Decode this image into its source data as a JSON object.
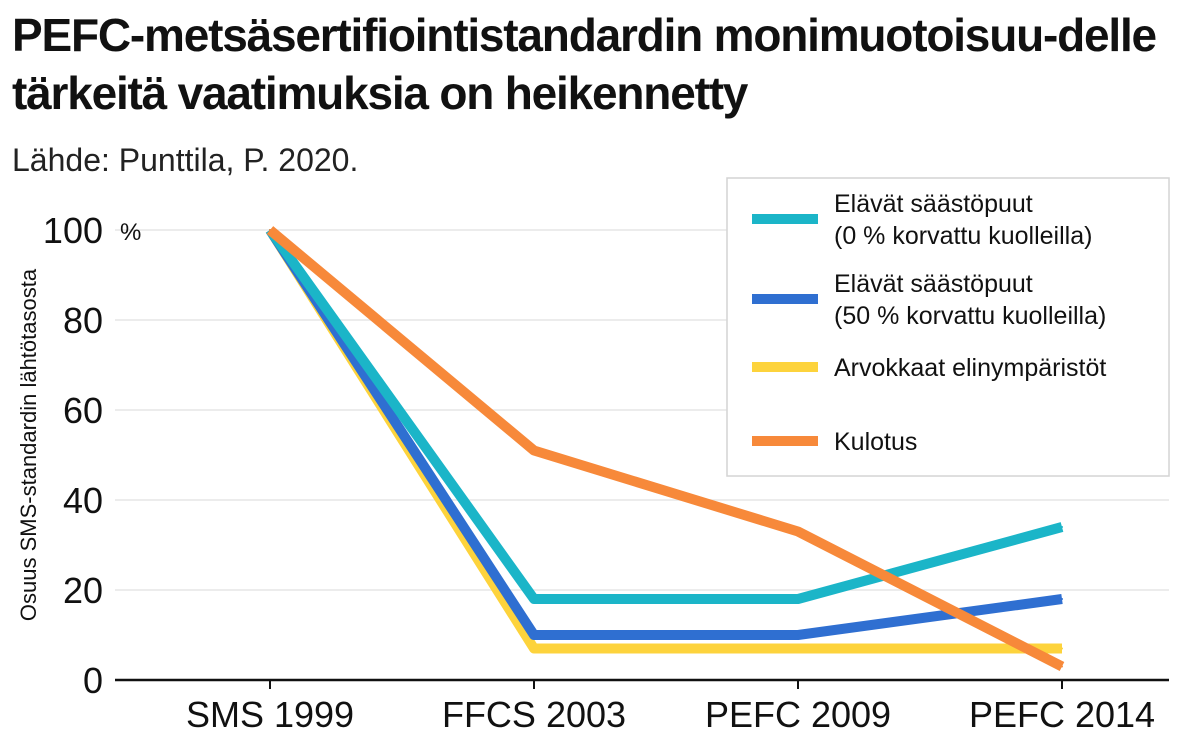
{
  "chart_data": {
    "type": "line",
    "title": "PEFC-metsäsertifiointistandardin monimuotoisuu-delle tärkeitä vaatimuksia on heikennetty",
    "subtitle": "Lähde: Punttila, P. 2020.",
    "xlabel": "",
    "ylabel": "Osuus SMS-standardin lähtötasosta",
    "yunit": "%",
    "ylim": [
      0,
      100
    ],
    "yticks": [
      0,
      20,
      40,
      60,
      80,
      100
    ],
    "grid": true,
    "legend_position": "top-right",
    "categories": [
      "SMS 1999",
      "FFCS 2003",
      "PEFC 2009",
      "PEFC 2014"
    ],
    "series": [
      {
        "name": "Elävät säästöpuut (0 % korvattu kuolleilla)",
        "legend_lines": [
          "Elävät säästöpuut",
          "(0 % korvattu kuolleilla)"
        ],
        "color": "#1bb5c8",
        "values": [
          100,
          18,
          18,
          34
        ]
      },
      {
        "name": "Elävät säästöpuut (50 % korvattu kuolleilla)",
        "legend_lines": [
          "Elävät säästöpuut",
          "(50 % korvattu kuolleilla)"
        ],
        "color": "#2f6fd1",
        "values": [
          100,
          10,
          10,
          18
        ]
      },
      {
        "name": "Arvokkaat elinympäristöt",
        "legend_lines": [
          "Arvokkaat elinympäristöt"
        ],
        "color": "#fdd33c",
        "values": [
          100,
          7,
          7,
          7
        ]
      },
      {
        "name": "Kulotus",
        "legend_lines": [
          "Kulotus"
        ],
        "color": "#f7893a",
        "values": [
          100,
          51,
          33,
          3
        ]
      }
    ]
  }
}
